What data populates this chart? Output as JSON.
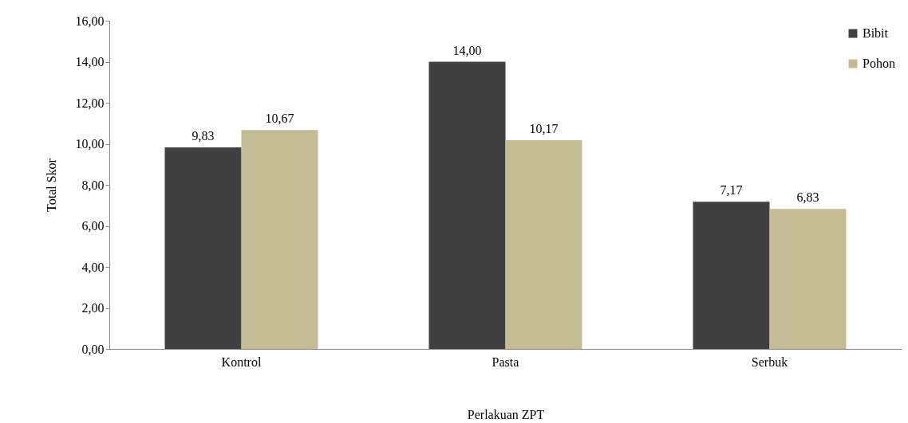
{
  "chart_data": {
    "type": "bar",
    "xlabel": "Perlakuan ZPT",
    "ylabel": "Total Skor",
    "categories": [
      "Kontrol",
      "Pasta",
      "Serbuk"
    ],
    "series": [
      {
        "name": "Bibit",
        "color": "#404040",
        "values": [
          9.83,
          14.0,
          7.17
        ],
        "value_labels": [
          "9,83",
          "14,00",
          "7,17"
        ]
      },
      {
        "name": "Pohon",
        "color": "#c4bc96",
        "values": [
          10.67,
          10.17,
          6.83
        ],
        "value_labels": [
          "10,67",
          "10,17",
          "6,83"
        ]
      }
    ],
    "ylim": [
      0,
      16
    ],
    "yticks": [
      {
        "value": 0,
        "label": "0,00"
      },
      {
        "value": 2,
        "label": "2,00"
      },
      {
        "value": 4,
        "label": "4,00"
      },
      {
        "value": 6,
        "label": "6,00"
      },
      {
        "value": 8,
        "label": "8,00"
      },
      {
        "value": 10,
        "label": "10,00"
      },
      {
        "value": 12,
        "label": "12,00"
      },
      {
        "value": 14,
        "label": "14,00"
      },
      {
        "value": 16,
        "label": "16,00"
      }
    ],
    "grid": false,
    "legend": "top right"
  }
}
